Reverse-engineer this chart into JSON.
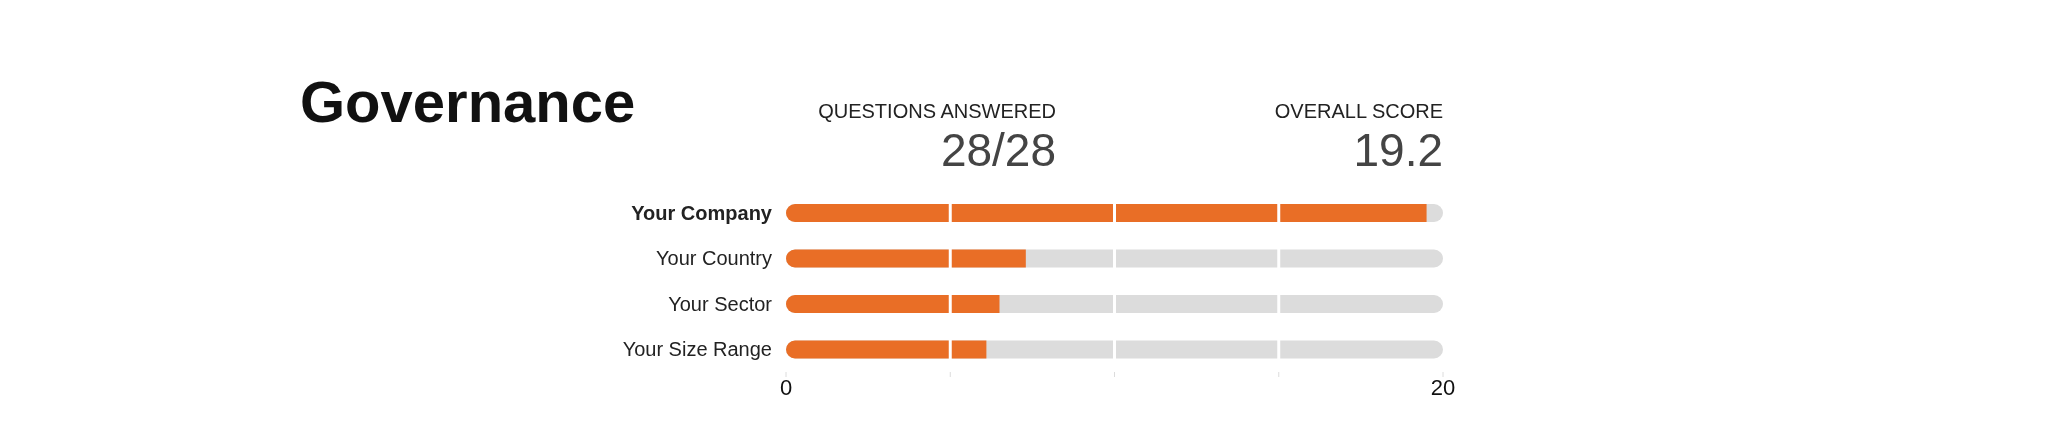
{
  "chart_data": {
    "type": "bar",
    "orientation": "horizontal",
    "title": "Governance",
    "categories": [
      "Your Company",
      "Your Country",
      "Your Sector",
      "Your Size Range"
    ],
    "values": [
      19.5,
      7.3,
      6.5,
      6.1
    ],
    "color": "#e96e26",
    "xlim": [
      0,
      20
    ],
    "xticks": [
      0,
      {
        "value": 5,
        "label": null
      },
      {
        "value": 10,
        "label": null
      },
      {
        "value": 15,
        "label": null
      },
      20
    ],
    "grid": "x",
    "annotations": [
      "QUESTIONS ANSWERED",
      "28/28",
      "OVERALL SCORE",
      "19.2"
    ]
  }
}
